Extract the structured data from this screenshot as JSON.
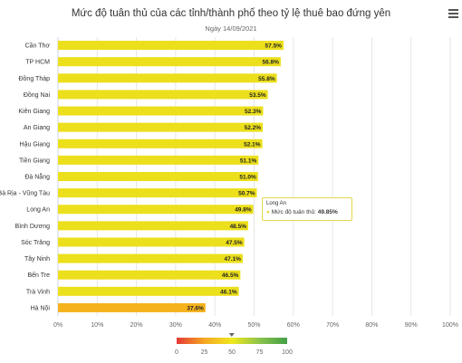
{
  "header": {
    "title": "Mức độ tuân thủ của các tỉnh/thành phố theo tỷ lệ thuê bao đứng yên",
    "subtitle": "Ngày 14/09/2021"
  },
  "tooltip": {
    "name": "Long An",
    "label": "Mức độ tuân thủ:",
    "value": "49.85%"
  },
  "chart_data": {
    "type": "bar",
    "orientation": "horizontal",
    "categories": [
      "Cần Thơ",
      "TP HCM",
      "Đồng Tháp",
      "Đồng Nai",
      "Kiên Giang",
      "An Giang",
      "Hậu Giang",
      "Tiền Giang",
      "Đà Nẵng",
      "Bà Rịa - Vũng Tàu",
      "Long An",
      "Bình Dương",
      "Sóc Trăng",
      "Tây Ninh",
      "Bến Tre",
      "Trà Vinh",
      "Hà Nội"
    ],
    "values": [
      57.5,
      56.8,
      55.8,
      53.5,
      52.3,
      52.2,
      52.1,
      51.1,
      51.0,
      50.7,
      49.8,
      48.5,
      47.5,
      47.1,
      46.5,
      46.1,
      37.6
    ],
    "data_labels": [
      "57.5%",
      "56.8%",
      "55.8%",
      "53.5%",
      "52.3%",
      "52.2%",
      "52.1%",
      "51.1%",
      "51.0%",
      "50.7%",
      "49.8%",
      "48.5%",
      "47.5%",
      "47.1%",
      "46.5%",
      "46.1%",
      "37.6%"
    ],
    "xlim": [
      0,
      100
    ],
    "x_ticks": [
      0,
      10,
      20,
      30,
      40,
      50,
      60,
      70,
      80,
      90,
      100
    ],
    "x_tick_labels": [
      "0%",
      "10%",
      "20%",
      "30%",
      "40%",
      "50%",
      "60%",
      "70%",
      "80%",
      "90%",
      "100%"
    ],
    "grid": true,
    "color_axis": {
      "min": 0,
      "max": 100,
      "tick_labels": [
        "0",
        "25",
        "50",
        "75",
        "100"
      ],
      "stops": [
        "#e53935",
        "#f5a623",
        "#f0e81e",
        "#8bc34a",
        "#43a047"
      ]
    },
    "bar_colors": {
      "default": "#ecdf1b",
      "low": "#f5b21c"
    }
  }
}
